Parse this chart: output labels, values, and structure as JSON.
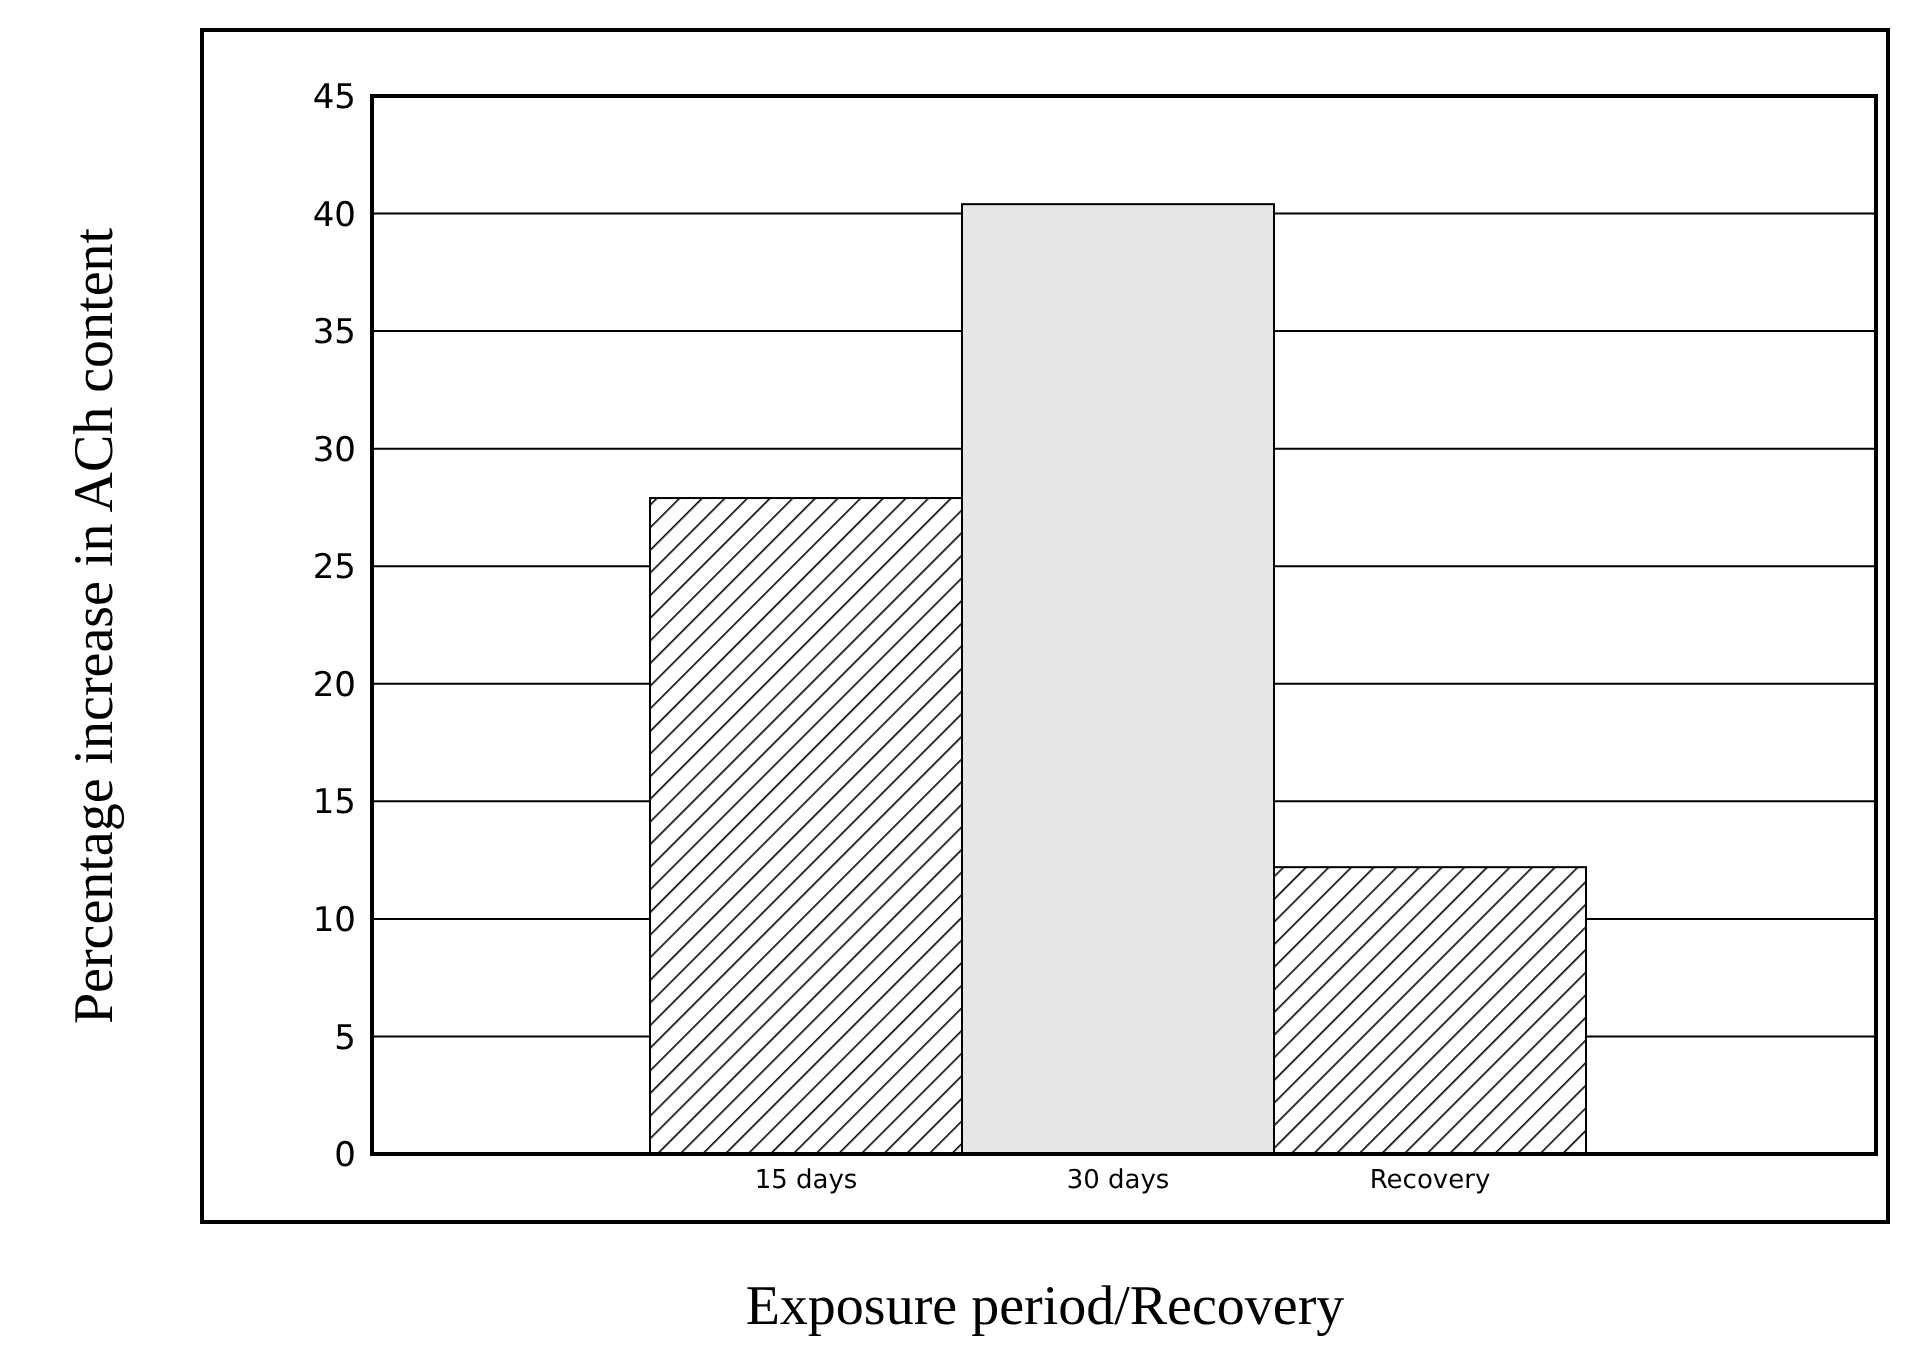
{
  "chart_data": {
    "type": "bar",
    "xlabel": "Exposure period/Recovery",
    "ylabel": "Percentage increase in ACh content",
    "categories": [
      "15 days",
      "30 days",
      "Recovery"
    ],
    "values": [
      27.9,
      40.4,
      12.2
    ],
    "colors": [
      "#000000",
      "#e6e6e6",
      "#000000"
    ],
    "ylim": [
      0,
      45
    ],
    "yticks": [
      0,
      5,
      10,
      15,
      20,
      25,
      30,
      35,
      40,
      45
    ],
    "grid": "y"
  }
}
